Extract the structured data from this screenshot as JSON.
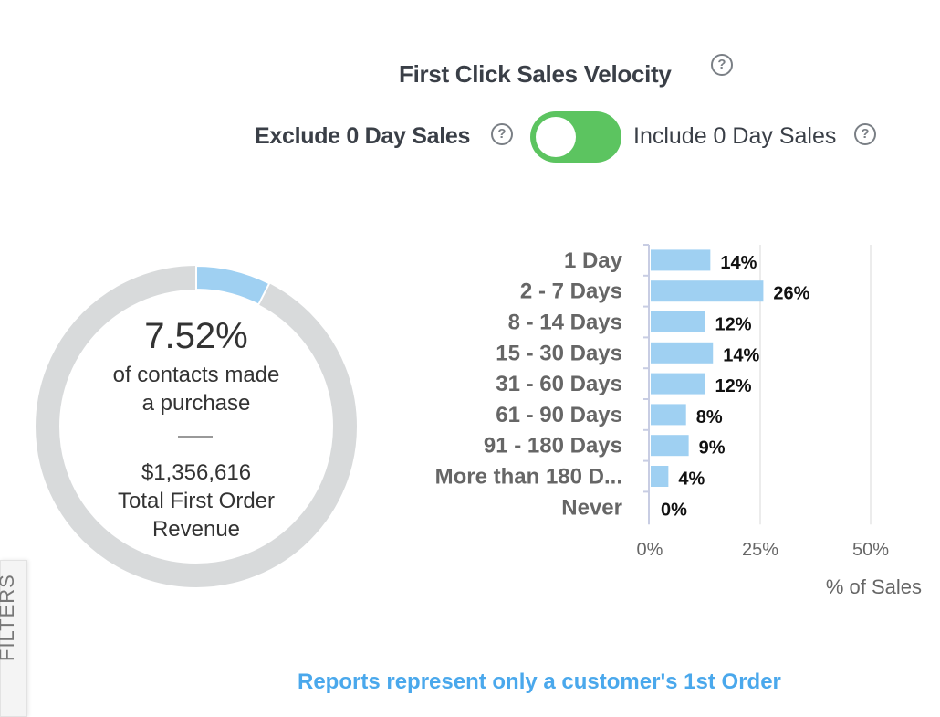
{
  "header": {
    "title": "First Click Sales Velocity",
    "exclude_label": "Exclude 0 Day Sales",
    "include_label": "Include 0 Day Sales",
    "toggle_state": "exclude",
    "help_icon": "question-circle-icon"
  },
  "donut": {
    "percent_value": 7.52,
    "percent_label": "7.52%",
    "line1": "of contacts made",
    "line2": "a purchase",
    "revenue": "$1,356,616",
    "revenue_label1": "Total First Order",
    "revenue_label2": "Revenue",
    "colors": {
      "filled": "#9fd0f2",
      "empty": "#d8dadb"
    }
  },
  "filters_tab": "FILTERS",
  "footer_note": "Reports represent only a customer's 1st Order",
  "chart_data": {
    "type": "bar",
    "orientation": "horizontal",
    "categories": [
      "1 Day",
      "2 - 7 Days",
      "8 - 14 Days",
      "15 - 30 Days",
      "31 - 60 Days",
      "61 - 90 Days",
      "91 - 180 Days",
      "More than 180 D...",
      "Never"
    ],
    "values": [
      13.5,
      25.5,
      12.3,
      14.1,
      12.3,
      8.0,
      8.6,
      4.0,
      0
    ],
    "data_labels": [
      "14%",
      "26%",
      "12%",
      "14%",
      "12%",
      "8%",
      "9%",
      "4%",
      "0%"
    ],
    "xlabel": "% of Sales",
    "xlim": [
      0,
      50
    ],
    "xticks": [
      "0%",
      "25%",
      "50%"
    ],
    "xtick_values": [
      0,
      25,
      50
    ],
    "bar_color": "#9fd0f2",
    "grid": true
  }
}
